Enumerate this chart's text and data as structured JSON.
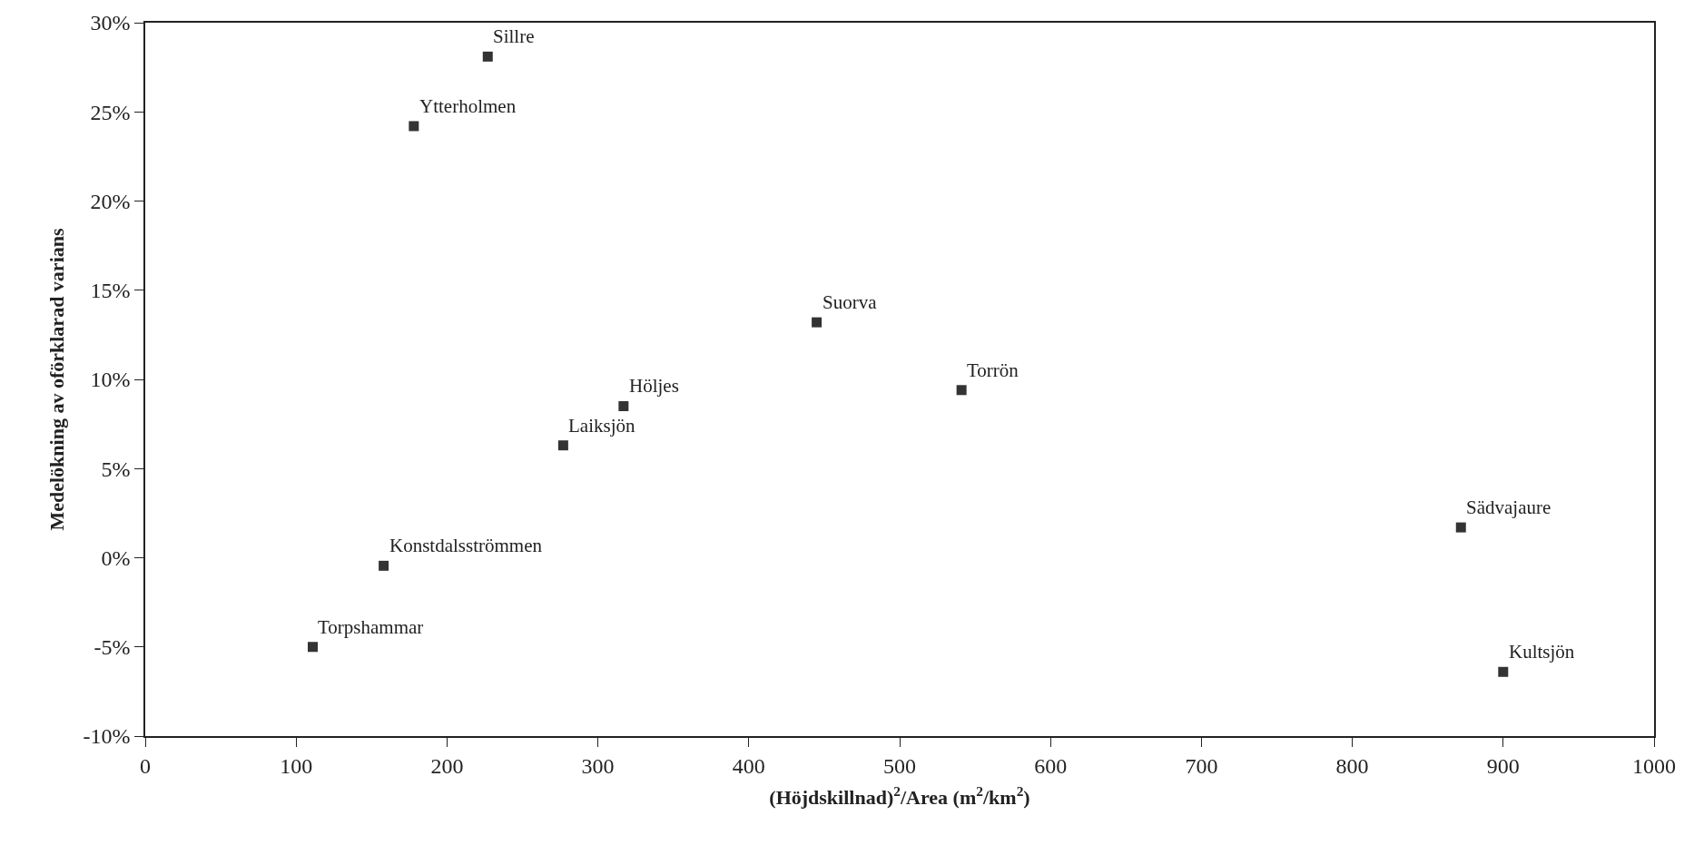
{
  "chart_data": {
    "type": "scatter",
    "xlabel": "(Höjdskillnad)$^{2}$/Area (m$^{2}$/km$^{2}$)",
    "ylabel": "Medelökning av oförklarad varians",
    "x": [
      227,
      178,
      445,
      317,
      277,
      541,
      158,
      111,
      872,
      900
    ],
    "series": [
      {
        "color": "#333333",
        "values": [
          28.1,
          24.2,
          13.2,
          8.5,
          6.3,
          9.4,
          -0.45,
          -5.0,
          1.7,
          -6.4
        ]
      }
    ],
    "annotations": [
      {
        "text": "Sillre",
        "x": 227,
        "y": 28.1
      },
      {
        "text": "Ytterholmen",
        "x": 178,
        "y": 24.2
      },
      {
        "text": "Suorva",
        "x": 445,
        "y": 13.2
      },
      {
        "text": "Höljes",
        "x": 317,
        "y": 8.5
      },
      {
        "text": "Laiksjön",
        "x": 277,
        "y": 6.3
      },
      {
        "text": "Torrön",
        "x": 541,
        "y": 9.4
      },
      {
        "text": "Konstdalsströmmen",
        "x": 158,
        "y": -0.45
      },
      {
        "text": "Torpshammar",
        "x": 111,
        "y": -5.0
      },
      {
        "text": "Sädvajaure",
        "x": 872,
        "y": 1.7
      },
      {
        "text": "Kultsjön",
        "x": 900,
        "y": -6.4
      }
    ],
    "xlim": [
      0,
      1000
    ],
    "xticks": [
      0,
      100,
      200,
      300,
      400,
      500,
      600,
      700,
      800,
      900,
      1000
    ],
    "ylim": [
      -10,
      30
    ],
    "yticks": [
      {
        "value": -10,
        "label": "-10%"
      },
      {
        "value": -5,
        "label": "-5%"
      },
      {
        "value": 0,
        "label": "0%"
      },
      {
        "value": 5,
        "label": "5%"
      },
      {
        "value": 10,
        "label": "10%"
      },
      {
        "value": 15,
        "label": "15%"
      },
      {
        "value": 20,
        "label": "20%"
      },
      {
        "value": 25,
        "label": "25%"
      },
      {
        "value": 30,
        "label": "30%"
      }
    ],
    "marker": "square"
  }
}
